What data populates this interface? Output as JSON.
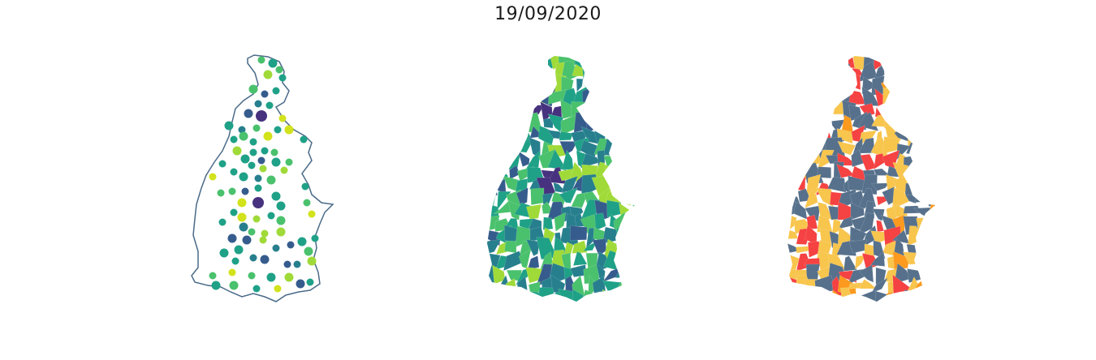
{
  "figure": {
    "title": "19/09/2020"
  },
  "colors": {
    "outline": "#4a6a88",
    "viridis": [
      "#46327e",
      "#365c8d",
      "#277f8e",
      "#1fa187",
      "#4ac16d",
      "#a0da39",
      "#d2e21b"
    ],
    "classes": {
      "low": "#57718c",
      "mid": "#f8c54d",
      "high": "#fb9a1e",
      "top": "#f54242"
    }
  },
  "maps": [
    {
      "id": "bubbles",
      "kind": "proportional-symbols"
    },
    {
      "id": "choropleth",
      "kind": "continuous-choropleth"
    },
    {
      "id": "classes",
      "kind": "categorical-choropleth"
    }
  ]
}
